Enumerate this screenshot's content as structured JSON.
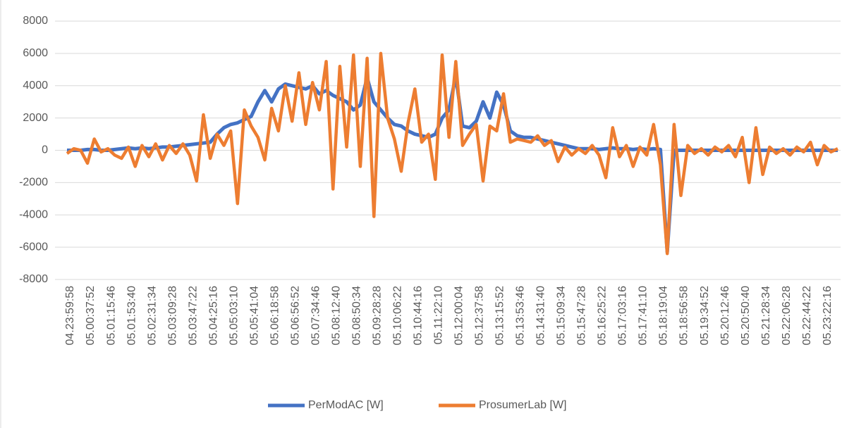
{
  "chart_data": {
    "type": "line",
    "categories": [
      "04.23:59:58",
      null,
      null,
      "05.00:37:52",
      null,
      null,
      "05.01:15:46",
      null,
      null,
      "05.01:53:40",
      null,
      null,
      "05.02:31:34",
      null,
      null,
      "05.03:09:28",
      null,
      null,
      "05.03:47:22",
      null,
      null,
      "05.04:25:16",
      null,
      null,
      "05.05:03:10",
      null,
      null,
      "05.05:41:04",
      null,
      null,
      "05.06:18:58",
      null,
      null,
      "05.06:56:52",
      null,
      null,
      "05.07:34:46",
      null,
      null,
      "05.08:12:40",
      null,
      null,
      "05.08:50:34",
      null,
      null,
      "05.09:28:28",
      null,
      null,
      "05.10:06:22",
      null,
      null,
      "05.10:44:16",
      null,
      null,
      "05.11:22:10",
      null,
      null,
      "05.12:00:04",
      null,
      null,
      "05.12:37:58",
      null,
      null,
      "05.13:15:52",
      null,
      null,
      "05.13:53:46",
      null,
      null,
      "05.14:31:40",
      null,
      null,
      "05.15:09:34",
      null,
      null,
      "05.15:47:28",
      null,
      null,
      "05.16:25:22",
      null,
      null,
      "05.17:03:16",
      null,
      null,
      "05.17:41:10",
      null,
      null,
      "05.18:19:04",
      null,
      null,
      "05.18:56:58",
      null,
      null,
      "05.19:34:52",
      null,
      null,
      "05.20:12:46",
      null,
      null,
      "05.20:50:40",
      null,
      null,
      "05.21:28:34",
      null,
      null,
      "05.22:06:28",
      null,
      null,
      "05.22:44:22",
      null,
      null,
      "05.23:22:16",
      null,
      null
    ],
    "series": [
      {
        "name": "PerModAC [W]",
        "color": "#4472c4",
        "values": [
          0,
          0,
          0,
          50,
          50,
          0,
          0,
          50,
          100,
          150,
          100,
          150,
          100,
          150,
          200,
          200,
          250,
          300,
          350,
          400,
          450,
          500,
          1000,
          1400,
          1600,
          1700,
          1900,
          2100,
          3000,
          3700,
          3000,
          3800,
          4100,
          4000,
          3900,
          3800,
          4000,
          3500,
          3700,
          3400,
          3200,
          3000,
          2500,
          2800,
          4500,
          3000,
          2500,
          2000,
          1600,
          1500,
          1200,
          1000,
          900,
          800,
          1000,
          2000,
          2500,
          4600,
          1500,
          1400,
          1800,
          3000,
          2000,
          3600,
          2800,
          1200,
          900,
          800,
          800,
          700,
          600,
          500,
          400,
          300,
          200,
          100,
          100,
          100,
          50,
          100,
          150,
          100,
          100,
          50,
          100,
          50,
          100,
          50,
          -6300,
          0,
          0,
          0,
          0,
          0,
          0,
          0,
          0,
          0,
          0,
          0,
          0,
          0,
          0,
          0,
          0,
          0,
          0,
          0,
          0,
          0,
          0,
          0,
          0,
          0
        ]
      },
      {
        "name": "ProsumerLab [W]",
        "color": "#ed7d31",
        "values": [
          -200,
          100,
          0,
          -800,
          700,
          -100,
          100,
          -300,
          -500,
          200,
          -1000,
          300,
          -400,
          400,
          -600,
          300,
          -200,
          400,
          -300,
          -1900,
          2200,
          -500,
          1000,
          300,
          1200,
          -3300,
          2500,
          1500,
          800,
          -600,
          2600,
          1200,
          4000,
          1800,
          4800,
          1600,
          4200,
          2500,
          5500,
          -2400,
          5200,
          200,
          5900,
          -1000,
          5700,
          -4100,
          6000,
          2000,
          700,
          -1300,
          1700,
          3800,
          500,
          1000,
          -1800,
          5900,
          800,
          5500,
          300,
          1000,
          1600,
          -1900,
          1500,
          1200,
          3500,
          500,
          700,
          600,
          500,
          900,
          300,
          600,
          -700,
          200,
          -300,
          100,
          -200,
          300,
          -300,
          -1700,
          1400,
          -400,
          300,
          -1000,
          200,
          -300,
          1600,
          -900,
          -6400,
          1600,
          -2800,
          300,
          -200,
          100,
          -300,
          200,
          -100,
          300,
          -400,
          800,
          -2000,
          1400,
          -1500,
          200,
          -200,
          100,
          -300,
          200,
          -100,
          500,
          -900,
          300,
          -100,
          100
        ]
      }
    ],
    "ylim": [
      -8000,
      8000
    ],
    "yticks": [
      -8000,
      -6000,
      -4000,
      -2000,
      0,
      2000,
      4000,
      6000,
      8000
    ],
    "grid": true,
    "legend": "bottom"
  }
}
